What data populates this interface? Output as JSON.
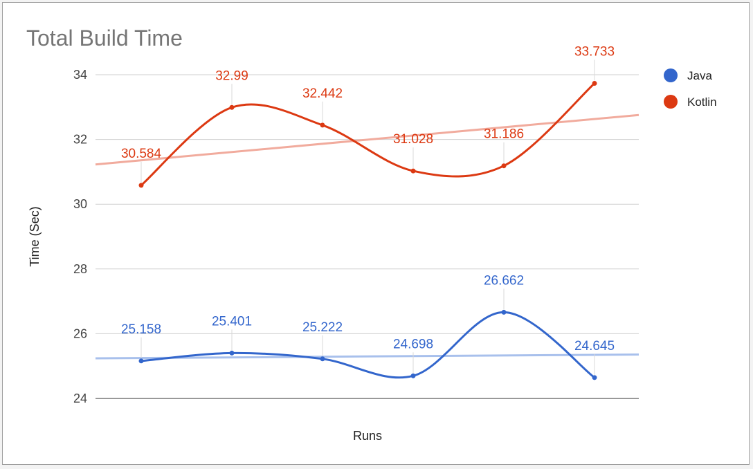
{
  "chart_data": {
    "type": "line",
    "title": "Total Build Time",
    "xlabel": "Runs",
    "ylabel": "Time (Sec)",
    "ylim": [
      24,
      34
    ],
    "yticks": [
      24,
      26,
      28,
      30,
      32,
      34
    ],
    "x": [
      1,
      2,
      3,
      4,
      5,
      6
    ],
    "grid": true,
    "legend_position": "right",
    "trendlines": true,
    "series": [
      {
        "name": "Java",
        "color": "#3366cc",
        "trend_color": "#a8c0ec",
        "values": [
          25.158,
          25.401,
          25.222,
          24.698,
          26.662,
          24.645
        ],
        "labels": [
          "25.158",
          "25.401",
          "25.222",
          "24.698",
          "26.662",
          "24.645"
        ]
      },
      {
        "name": "Kotlin",
        "color": "#dc3912",
        "trend_color": "#f1ab9d",
        "values": [
          30.584,
          32.99,
          32.442,
          31.028,
          31.186,
          33.733
        ],
        "labels": [
          "30.584",
          "32.99",
          "32.442",
          "31.028",
          "31.186",
          "33.733"
        ]
      }
    ]
  }
}
